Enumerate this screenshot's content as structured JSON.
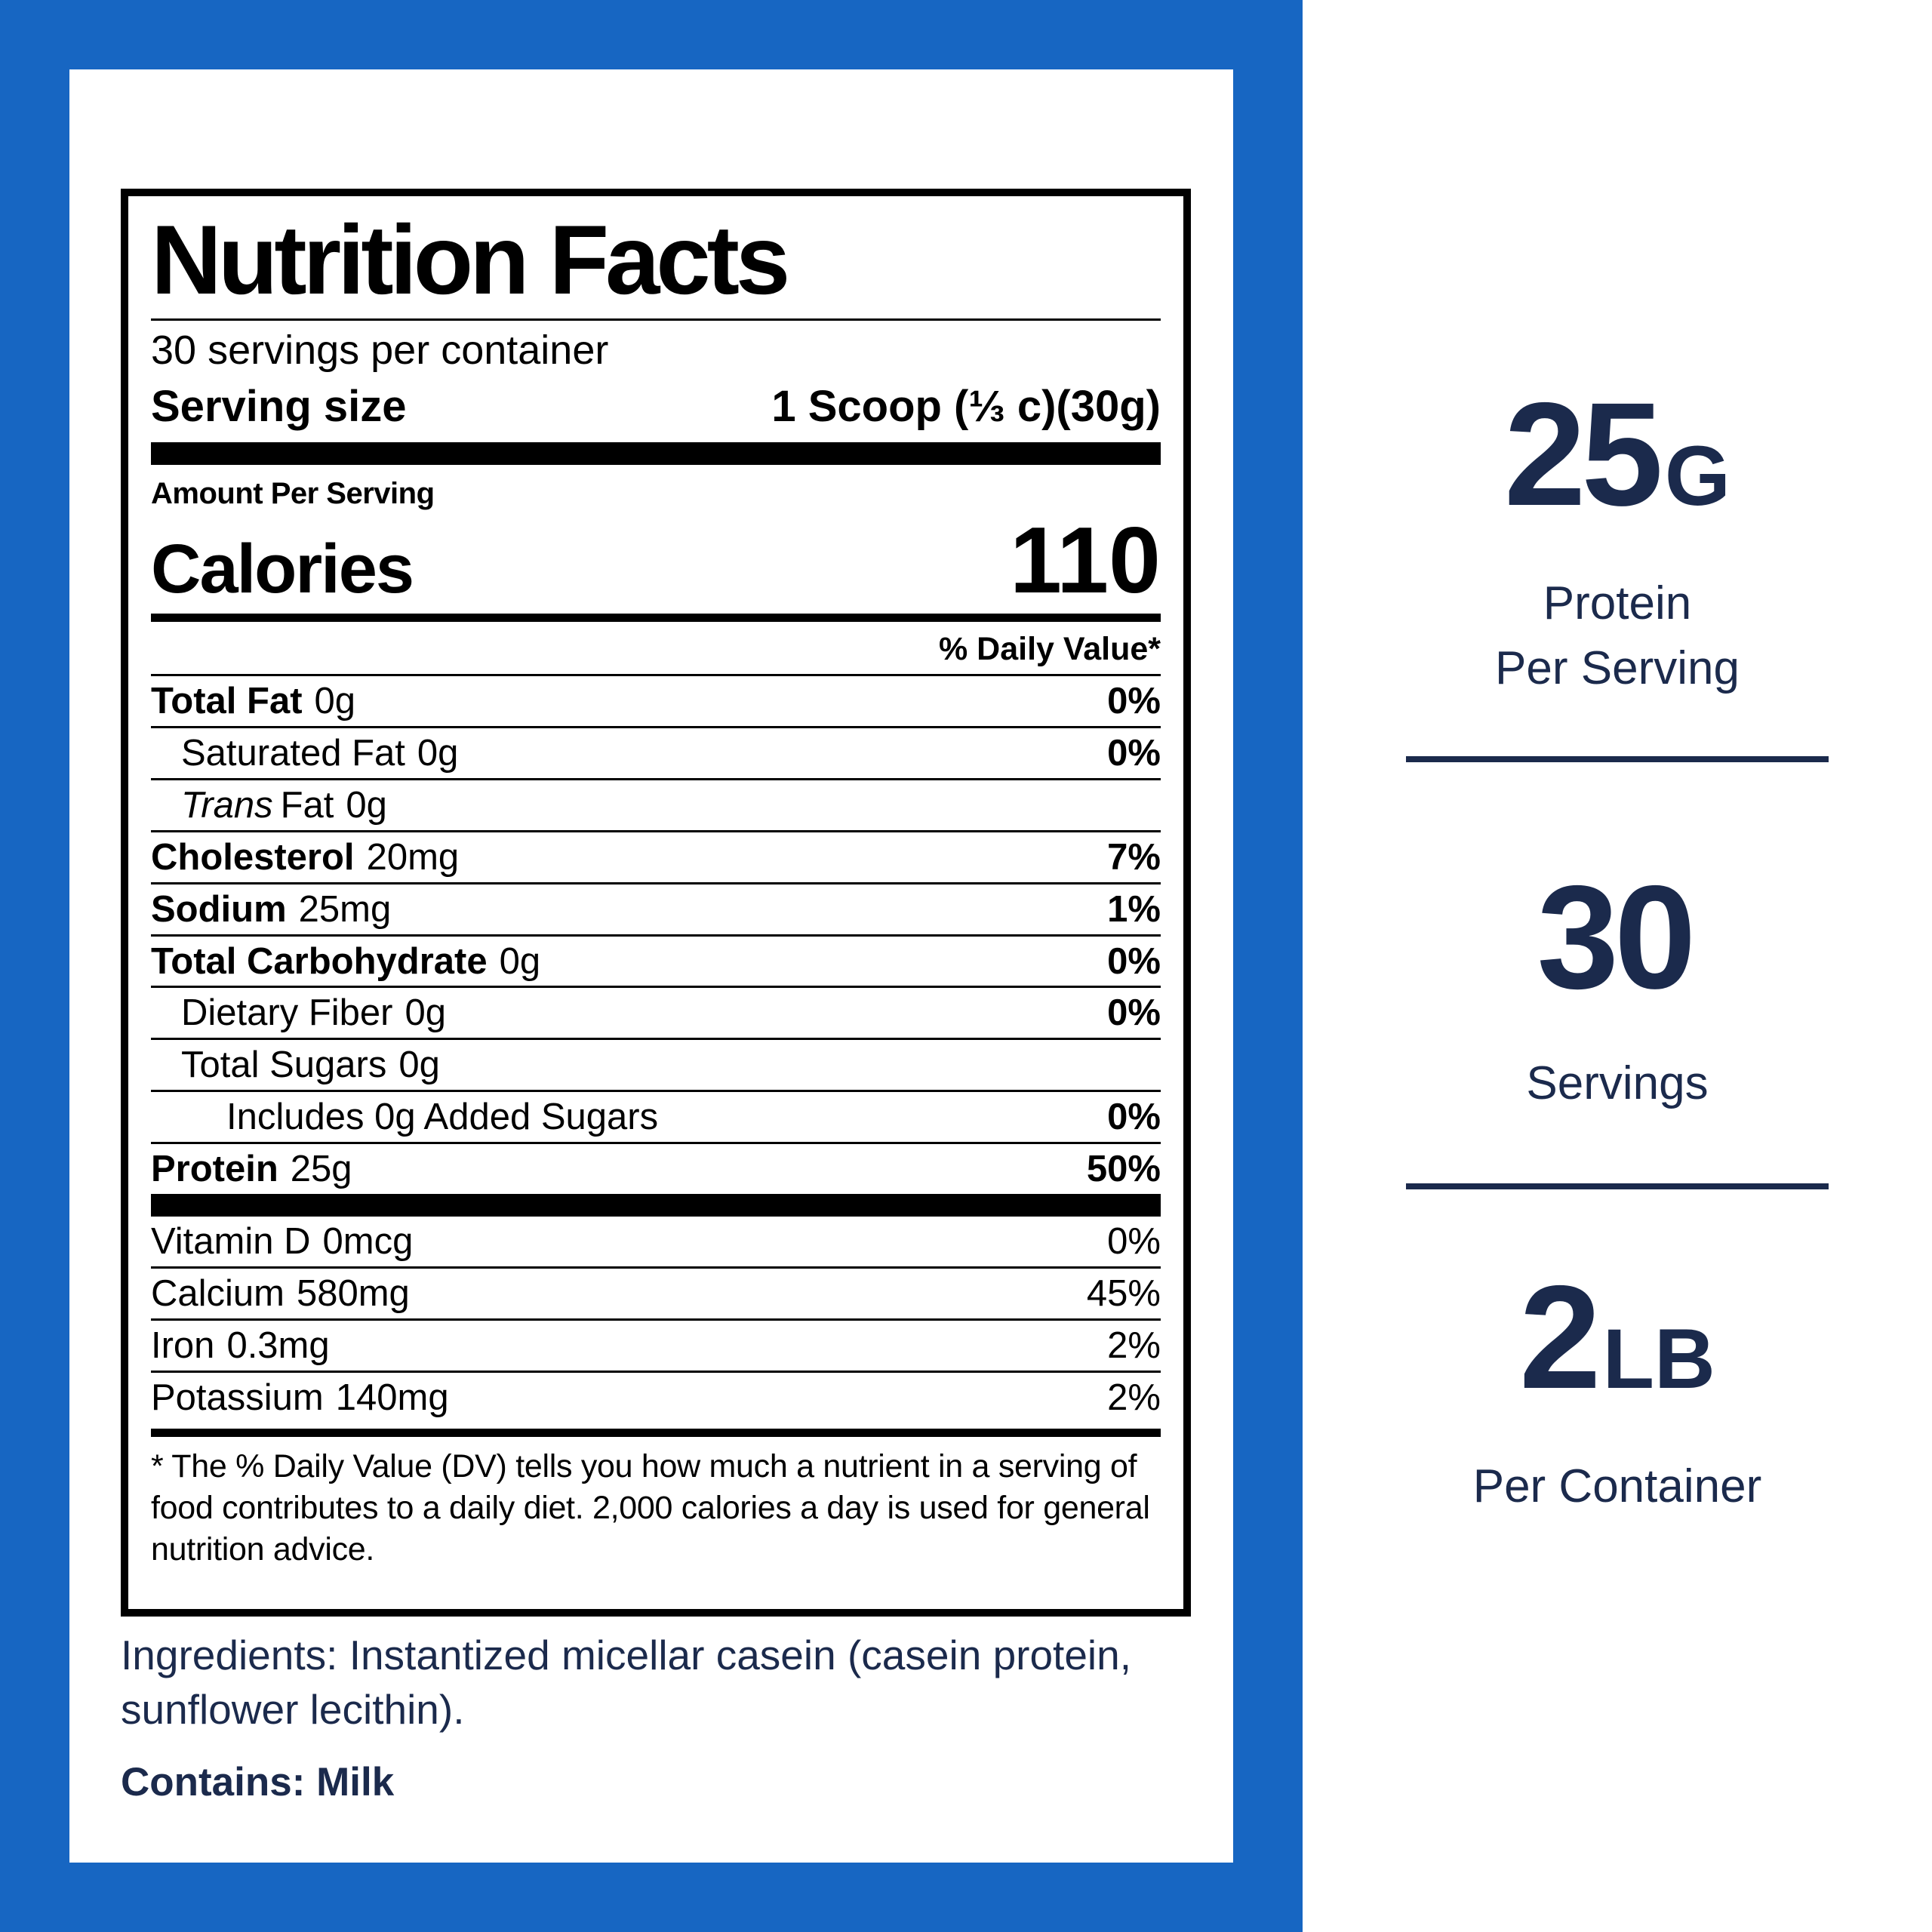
{
  "colors": {
    "blue": "#1766c2",
    "navy": "#1b2a4c",
    "black": "#000000",
    "white": "#ffffff"
  },
  "label": {
    "title": "Nutrition Facts",
    "servings_per_container": "30 servings per container",
    "serving_size_label": "Serving size",
    "serving_size_value": "1 Scoop (⅓ c)(30g)",
    "amount_per_serving": "Amount Per Serving",
    "calories_label": "Calories",
    "calories_value": "110",
    "daily_value_header": "% Daily Value*",
    "nutrients": [
      {
        "name": "Total Fat",
        "amount": "0g",
        "dv": "0%",
        "bold": true,
        "dv_bold": true,
        "indent": 0
      },
      {
        "name": "Saturated Fat",
        "amount": "0g",
        "dv": "0%",
        "bold": false,
        "dv_bold": true,
        "indent": 1
      },
      {
        "name_italic": "Trans",
        "name": "Fat",
        "amount": "0g",
        "dv": "",
        "bold": false,
        "dv_bold": false,
        "indent": 1
      },
      {
        "name": "Cholesterol",
        "amount": "20mg",
        "dv": "7%",
        "bold": true,
        "dv_bold": true,
        "indent": 0
      },
      {
        "name": "Sodium",
        "amount": "25mg",
        "dv": "1%",
        "bold": true,
        "dv_bold": true,
        "indent": 0
      },
      {
        "name": "Total Carbohydrate",
        "amount": "0g",
        "dv": "0%",
        "bold": true,
        "dv_bold": true,
        "indent": 0
      },
      {
        "name": "Dietary Fiber",
        "amount": "0g",
        "dv": "0%",
        "bold": false,
        "dv_bold": true,
        "indent": 1
      },
      {
        "name": "Total Sugars",
        "amount": "0g",
        "dv": "",
        "bold": false,
        "dv_bold": false,
        "indent": 1
      },
      {
        "name": "Includes 0g Added Sugars",
        "amount": "",
        "dv": "0%",
        "bold": false,
        "dv_bold": true,
        "indent": 2
      },
      {
        "name": "Protein",
        "amount": "25g",
        "dv": "50%",
        "bold": true,
        "dv_bold": true,
        "indent": 0
      }
    ],
    "vitamins": [
      {
        "name": "Vitamin D",
        "amount": "0mcg",
        "dv": "0%"
      },
      {
        "name": "Calcium",
        "amount": "580mg",
        "dv": "45%"
      },
      {
        "name": "Iron",
        "amount": "0.3mg",
        "dv": "2%"
      },
      {
        "name": "Potassium",
        "amount": "140mg",
        "dv": "2%"
      }
    ],
    "footnote": "* The % Daily Value (DV) tells you how much a nutrient in a serving of food contributes to a daily diet. 2,000 calories a day is used for general nutrition advice."
  },
  "ingredients": {
    "text": "Ingredients: Instantized micellar casein (casein protein, sunflower lecithin).",
    "contains": "Contains: Milk"
  },
  "stats": [
    {
      "value": "25",
      "suffix": "G",
      "label1": "Protein",
      "label2": "Per Serving"
    },
    {
      "value": "30",
      "suffix": "",
      "label1": "Servings",
      "label2": ""
    },
    {
      "value": "2",
      "suffix": "LB",
      "label1": "Per Container",
      "label2": ""
    }
  ]
}
